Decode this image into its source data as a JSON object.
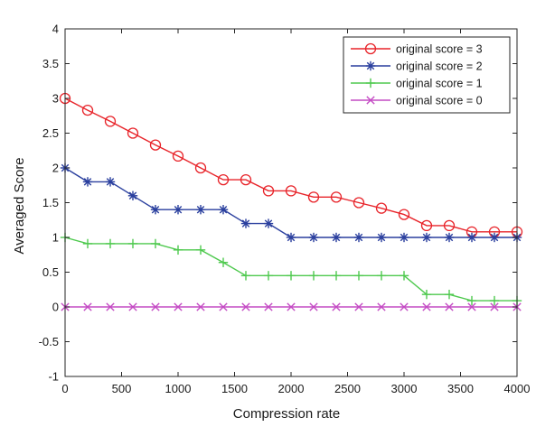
{
  "chart_data": {
    "type": "line",
    "title": "",
    "xlabel": "Compression rate",
    "ylabel": "Averaged Score",
    "xlim": [
      0,
      4000
    ],
    "ylim": [
      -1,
      4
    ],
    "x_ticks": [
      "0",
      "500",
      "1000",
      "1500",
      "2000",
      "2500",
      "3000",
      "3500",
      "4000"
    ],
    "y_ticks": [
      "-1",
      "-0.5",
      "0",
      "0.5",
      "1",
      "1.5",
      "2",
      "2.5",
      "3",
      "3.5",
      "4"
    ],
    "grid": false,
    "legend_position": "top-right",
    "x": [
      0,
      200,
      400,
      600,
      800,
      1000,
      1200,
      1400,
      1600,
      1800,
      2000,
      2200,
      2400,
      2600,
      2800,
      3000,
      3200,
      3400,
      3600,
      3800,
      4000
    ],
    "series": [
      {
        "name": "original score = 3",
        "color": "#e8242a",
        "marker": "circle",
        "values": [
          3.0,
          2.83,
          2.67,
          2.5,
          2.33,
          2.17,
          2.0,
          1.83,
          1.83,
          1.67,
          1.67,
          1.58,
          1.58,
          1.5,
          1.42,
          1.33,
          1.17,
          1.17,
          1.08,
          1.08,
          1.08
        ]
      },
      {
        "name": "original score = 2",
        "color": "#2a3f9e",
        "marker": "asterisk",
        "values": [
          2.0,
          1.8,
          1.8,
          1.6,
          1.4,
          1.4,
          1.4,
          1.4,
          1.2,
          1.2,
          1.0,
          1.0,
          1.0,
          1.0,
          1.0,
          1.0,
          1.0,
          1.0,
          1.0,
          1.0,
          1.0
        ]
      },
      {
        "name": "original score = 1",
        "color": "#4ec94e",
        "marker": "plus",
        "values": [
          1.0,
          0.91,
          0.91,
          0.91,
          0.91,
          0.82,
          0.82,
          0.64,
          0.45,
          0.45,
          0.45,
          0.45,
          0.45,
          0.45,
          0.45,
          0.45,
          0.18,
          0.18,
          0.09,
          0.09,
          0.09
        ]
      },
      {
        "name": "original score = 0",
        "color": "#c44bc4",
        "marker": "x",
        "values": [
          0,
          0,
          0,
          0,
          0,
          0,
          0,
          0,
          0,
          0,
          0,
          0,
          0,
          0,
          0,
          0,
          0,
          0,
          0,
          0,
          0
        ]
      }
    ]
  }
}
